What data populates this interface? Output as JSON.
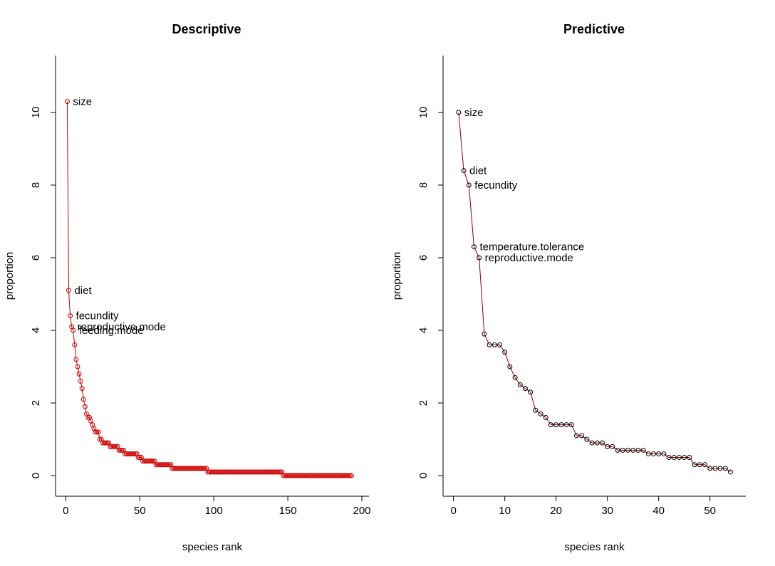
{
  "chart_data": [
    {
      "type": "line",
      "title": "Descriptive",
      "xlabel": "species rank",
      "ylabel": "proportion",
      "xlim": [
        0,
        200
      ],
      "ylim": [
        0,
        11
      ],
      "x_ticks": [
        "0",
        "50",
        "100",
        "150",
        "200"
      ],
      "y_ticks": [
        "0",
        "2",
        "4",
        "6",
        "8",
        "10"
      ],
      "grid": false,
      "line_color": "#cc0000",
      "point_color": "#cc0000",
      "series": [
        {
          "segments": [
            {
              "from": 1,
              "to": 1,
              "value": 10.3
            },
            {
              "from": 2,
              "to": 2,
              "value": 5.1
            },
            {
              "from": 3,
              "to": 3,
              "value": 4.4
            },
            {
              "from": 4,
              "to": 4,
              "value": 4.1
            },
            {
              "from": 5,
              "to": 5,
              "value": 4.0
            },
            {
              "from": 6,
              "to": 6,
              "value": 3.6
            },
            {
              "from": 7,
              "to": 7,
              "value": 3.2
            },
            {
              "from": 8,
              "to": 8,
              "value": 3.0
            },
            {
              "from": 9,
              "to": 9,
              "value": 2.8
            },
            {
              "from": 10,
              "to": 10,
              "value": 2.6
            },
            {
              "from": 11,
              "to": 11,
              "value": 2.4
            },
            {
              "from": 12,
              "to": 12,
              "value": 2.1
            },
            {
              "from": 13,
              "to": 13,
              "value": 1.9
            },
            {
              "from": 14,
              "to": 14,
              "value": 1.7
            },
            {
              "from": 15,
              "to": 16,
              "value": 1.6
            },
            {
              "from": 17,
              "to": 17,
              "value": 1.5
            },
            {
              "from": 18,
              "to": 18,
              "value": 1.4
            },
            {
              "from": 19,
              "to": 19,
              "value": 1.3
            },
            {
              "from": 20,
              "to": 22,
              "value": 1.2
            },
            {
              "from": 23,
              "to": 24,
              "value": 1.0
            },
            {
              "from": 25,
              "to": 26,
              "value": 0.9
            },
            {
              "from": 27,
              "to": 29,
              "value": 0.9
            },
            {
              "from": 30,
              "to": 35,
              "value": 0.8
            },
            {
              "from": 36,
              "to": 39,
              "value": 0.7
            },
            {
              "from": 40,
              "to": 48,
              "value": 0.6
            },
            {
              "from": 49,
              "to": 51,
              "value": 0.5
            },
            {
              "from": 52,
              "to": 60,
              "value": 0.4
            },
            {
              "from": 61,
              "to": 71,
              "value": 0.3
            },
            {
              "from": 72,
              "to": 95,
              "value": 0.2
            },
            {
              "from": 96,
              "to": 146,
              "value": 0.1
            },
            {
              "from": 147,
              "to": 193,
              "value": 0.0
            }
          ]
        }
      ],
      "annotations": [
        {
          "text": "size",
          "x": 1,
          "y": 10.3
        },
        {
          "text": "diet",
          "x": 2,
          "y": 5.1
        },
        {
          "text": "fecundity",
          "x": 3,
          "y": 4.4
        },
        {
          "text": "reproductive.mode",
          "x": 4,
          "y": 4.1
        },
        {
          "text": "feeding.mode",
          "x": 5,
          "y": 4.0
        }
      ]
    },
    {
      "type": "line",
      "title": "Predictive",
      "xlabel": "species rank",
      "ylabel": "proportion",
      "xlim": [
        0,
        55
      ],
      "ylim": [
        0,
        11
      ],
      "x_ticks": [
        "0",
        "10",
        "20",
        "30",
        "40",
        "50"
      ],
      "y_ticks": [
        "0",
        "2",
        "4",
        "6",
        "8",
        "10"
      ],
      "grid": false,
      "line_color": "#8b0000",
      "point_color": "#000000",
      "series": [
        {
          "x": [
            1,
            2,
            3,
            4,
            5,
            6,
            7,
            8,
            9,
            10,
            11,
            12,
            13,
            14,
            15,
            16,
            17,
            18,
            19,
            20,
            21,
            22,
            23,
            24,
            25,
            26,
            27,
            28,
            29,
            30,
            31,
            32,
            33,
            34,
            35,
            36,
            37,
            38,
            39,
            40,
            41,
            42,
            43,
            44,
            45,
            46,
            47,
            48,
            49,
            50,
            51,
            52,
            53,
            54
          ],
          "values": [
            10.0,
            8.4,
            8.0,
            6.3,
            6.0,
            3.9,
            3.6,
            3.6,
            3.6,
            3.4,
            3.0,
            2.7,
            2.5,
            2.4,
            2.3,
            1.8,
            1.7,
            1.6,
            1.4,
            1.4,
            1.4,
            1.4,
            1.4,
            1.1,
            1.1,
            1.0,
            0.9,
            0.9,
            0.9,
            0.8,
            0.8,
            0.7,
            0.7,
            0.7,
            0.7,
            0.7,
            0.7,
            0.6,
            0.6,
            0.6,
            0.6,
            0.5,
            0.5,
            0.5,
            0.5,
            0.5,
            0.3,
            0.3,
            0.3,
            0.2,
            0.2,
            0.2,
            0.2,
            0.1
          ]
        }
      ],
      "annotations": [
        {
          "text": "size",
          "x": 1,
          "y": 10.0
        },
        {
          "text": "diet",
          "x": 2,
          "y": 8.4
        },
        {
          "text": "fecundity",
          "x": 3,
          "y": 8.0
        },
        {
          "text": "temperature.tolerance",
          "x": 4,
          "y": 6.3
        },
        {
          "text": "reproductive.mode",
          "x": 5,
          "y": 6.0
        }
      ]
    }
  ]
}
